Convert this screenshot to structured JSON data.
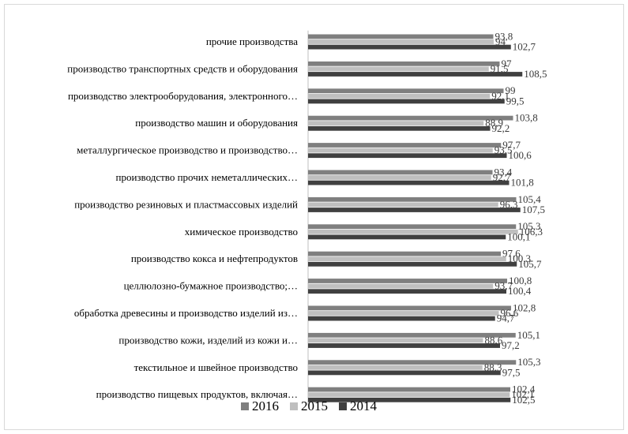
{
  "chart_data": {
    "type": "bar",
    "orientation": "horizontal",
    "categories": [
      "прочие производства",
      "производство транспортных средств и оборудования",
      "производство электрооборудования, электронного…",
      "производство машин и оборудования",
      "металлургическое производство и производство…",
      "производство прочих неметаллических…",
      "производство резиновых и пластмассовых изделий",
      "химическое производство",
      "производство кокса и нефтепродуктов",
      "целлюлозно-бумажное производство;…",
      "обработка древесины и производство изделий из…",
      "производство кожи, изделий из кожи и…",
      "текстильное и швейное производство",
      "производство пищевых продуктов, включая…"
    ],
    "series": [
      {
        "name": "2016",
        "color": "#7f7f7f",
        "values": [
          93.8,
          97,
          99,
          103.8,
          97.7,
          93.4,
          105.4,
          105.3,
          97.6,
          100.8,
          102.8,
          105.1,
          105.3,
          102.4
        ],
        "labels": [
          "93,8",
          "97",
          "99",
          "103,8",
          "97,7",
          "93,4",
          "105,4",
          "105,3",
          "97,6",
          "100,8",
          "102,8",
          "105,1",
          "105,3",
          "102,4"
        ]
      },
      {
        "name": "2015",
        "color": "#bfbfbf",
        "values": [
          94,
          91.5,
          92.1,
          88.9,
          93.5,
          92.7,
          96.3,
          106.3,
          100.3,
          93.7,
          96.6,
          88.6,
          88.3,
          102.1
        ],
        "labels": [
          "94",
          "91,5",
          "92,1",
          "88,9",
          "93,5",
          "92,7",
          "96,3",
          "106,3",
          "100,3",
          "93,7",
          "96,6",
          "88,6",
          "88,3",
          "102,1"
        ]
      },
      {
        "name": "2014",
        "color": "#404040",
        "values": [
          102.7,
          108.5,
          99.5,
          92.2,
          100.6,
          101.8,
          107.5,
          100.1,
          105.7,
          100.4,
          94.7,
          97.2,
          97.5,
          102.5
        ],
        "labels": [
          "102,7",
          "108,5",
          "99,5",
          "92,2",
          "100,6",
          "101,8",
          "107,5",
          "100,1",
          "105,7",
          "100,4",
          "94,7",
          "97,2",
          "97,5",
          "102,5"
        ]
      }
    ],
    "xlim": [
      0,
      410
    ],
    "legend_position": "bottom",
    "grid": false
  }
}
